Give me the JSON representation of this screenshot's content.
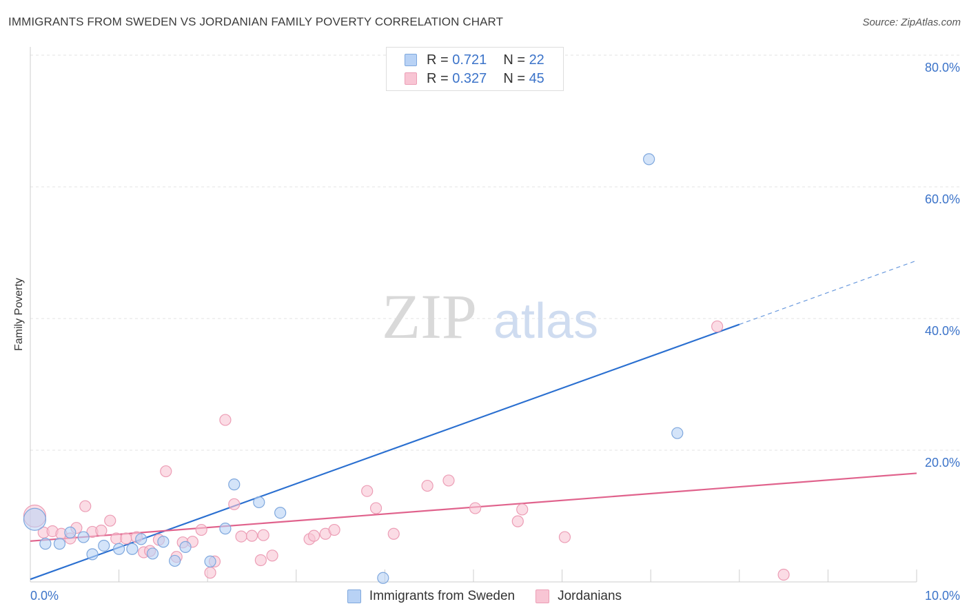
{
  "header": {
    "title": "IMMIGRANTS FROM SWEDEN VS JORDANIAN FAMILY POVERTY CORRELATION CHART",
    "source": "Source: ZipAtlas.com"
  },
  "legend": {
    "r_label": "R = ",
    "n_label": "N = ",
    "series": [
      {
        "name": "Immigrants from Sweden",
        "r": "0.721",
        "n": "22"
      },
      {
        "name": "Jordanians",
        "r": "0.327",
        "n": "45"
      }
    ]
  },
  "watermark": {
    "zip": "ZIP",
    "atlas": "atlas"
  },
  "colors": {
    "blue_fill": "#b8d2f5",
    "blue_stroke": "#7ea7dd",
    "blue_line": "#2a6fd0",
    "pink_fill": "#f8c5d4",
    "pink_stroke": "#ec9db5",
    "pink_line": "#e0628c",
    "axis_label": "#3b73c9",
    "grid": "#e3e3e3"
  },
  "chart_data": {
    "type": "scatter",
    "title": "IMMIGRANTS FROM SWEDEN VS JORDANIAN FAMILY POVERTY CORRELATION CHART",
    "xlabel": "",
    "ylabel": "Family Poverty",
    "xlim": [
      0,
      10
    ],
    "ylim": [
      0,
      80
    ],
    "x_tick_labels": [
      {
        "value": 0,
        "label": "0.0%"
      },
      {
        "value": 10,
        "label": "10.0%"
      }
    ],
    "y_tick_labels": [
      {
        "value": 20,
        "label": "20.0%"
      },
      {
        "value": 40,
        "label": "40.0%"
      },
      {
        "value": 60,
        "label": "60.0%"
      },
      {
        "value": 80,
        "label": "80.0%"
      }
    ],
    "x_minor_ticks": [
      1,
      2,
      3,
      4,
      5,
      6,
      7,
      8,
      9,
      10
    ],
    "series": [
      {
        "name": "Immigrants from Sweden",
        "color": "blue",
        "points": [
          [
            0.05,
            9.5
          ],
          [
            0.17,
            5.8
          ],
          [
            0.33,
            5.8
          ],
          [
            0.45,
            7.5
          ],
          [
            0.6,
            6.8
          ],
          [
            0.7,
            4.2
          ],
          [
            0.83,
            5.5
          ],
          [
            1.0,
            5.0
          ],
          [
            1.15,
            5.0
          ],
          [
            1.25,
            6.5
          ],
          [
            1.38,
            4.3
          ],
          [
            1.5,
            6.1
          ],
          [
            1.63,
            3.2
          ],
          [
            1.75,
            5.3
          ],
          [
            2.03,
            3.1
          ],
          [
            2.2,
            8.1
          ],
          [
            2.3,
            14.8
          ],
          [
            2.58,
            12.1
          ],
          [
            2.82,
            10.5
          ],
          [
            3.98,
            0.6
          ],
          [
            6.98,
            64.2
          ],
          [
            7.3,
            22.6
          ]
        ],
        "trend": {
          "x0": 0,
          "y0": 0.4,
          "x1": 8.0,
          "y1": 39.1,
          "dash_to_x": 10.0,
          "dash_to_y": 48.8
        }
      },
      {
        "name": "Jordanians",
        "color": "pink",
        "points": [
          [
            0.05,
            10.0
          ],
          [
            0.15,
            7.5
          ],
          [
            0.25,
            7.7
          ],
          [
            0.35,
            7.3
          ],
          [
            0.45,
            6.6
          ],
          [
            0.52,
            8.2
          ],
          [
            0.62,
            11.5
          ],
          [
            0.7,
            7.6
          ],
          [
            0.8,
            7.8
          ],
          [
            0.9,
            9.3
          ],
          [
            0.97,
            6.6
          ],
          [
            1.08,
            6.6
          ],
          [
            1.2,
            6.8
          ],
          [
            1.28,
            4.5
          ],
          [
            1.35,
            4.7
          ],
          [
            1.45,
            6.4
          ],
          [
            1.53,
            16.8
          ],
          [
            1.65,
            3.8
          ],
          [
            1.72,
            6.0
          ],
          [
            1.83,
            6.1
          ],
          [
            1.93,
            7.9
          ],
          [
            2.03,
            1.4
          ],
          [
            2.08,
            3.1
          ],
          [
            2.2,
            24.6
          ],
          [
            2.3,
            11.8
          ],
          [
            2.38,
            6.9
          ],
          [
            2.5,
            7.0
          ],
          [
            2.6,
            3.3
          ],
          [
            2.63,
            7.1
          ],
          [
            2.73,
            4.0
          ],
          [
            3.15,
            6.5
          ],
          [
            3.2,
            7.0
          ],
          [
            3.33,
            7.3
          ],
          [
            3.43,
            7.9
          ],
          [
            3.8,
            13.8
          ],
          [
            3.9,
            11.2
          ],
          [
            4.1,
            7.3
          ],
          [
            4.48,
            14.6
          ],
          [
            4.72,
            15.4
          ],
          [
            5.02,
            11.2
          ],
          [
            5.5,
            9.2
          ],
          [
            5.55,
            11.0
          ],
          [
            6.03,
            6.8
          ],
          [
            7.75,
            38.8
          ],
          [
            8.5,
            1.1
          ]
        ],
        "trend": {
          "x0": 0,
          "y0": 6.2,
          "x1": 10.0,
          "y1": 16.5
        }
      }
    ]
  }
}
